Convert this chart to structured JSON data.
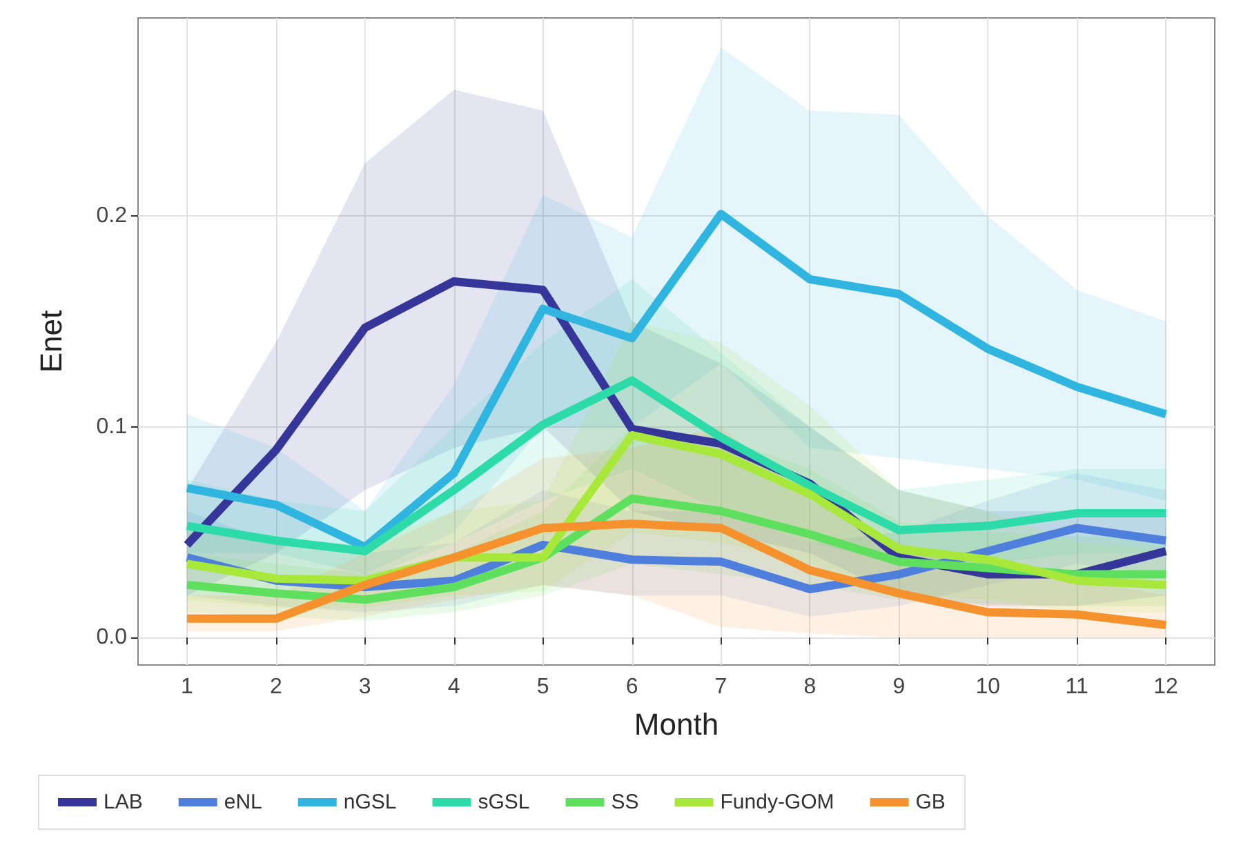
{
  "chart_data": {
    "type": "line",
    "xlabel": "Month",
    "ylabel": "Enet",
    "x": [
      1,
      2,
      3,
      4,
      5,
      6,
      7,
      8,
      9,
      10,
      11,
      12
    ],
    "xlim": [
      0.45,
      12.55
    ],
    "xticks": [
      1,
      2,
      3,
      4,
      5,
      6,
      7,
      8,
      9,
      10,
      11,
      12
    ],
    "ylim": [
      -0.013,
      0.294
    ],
    "yticks": [
      {
        "value": 0,
        "label": "0.0"
      },
      {
        "value": 0.1,
        "label": "0.1"
      },
      {
        "value": 0.2,
        "label": "0.2"
      }
    ],
    "grid": true,
    "legend": "bottom",
    "line_style": "solid",
    "marker": "none",
    "series": [
      {
        "name": "LAB",
        "color": "#35359a",
        "values": [
          0.044,
          0.089,
          0.147,
          0.169,
          0.165,
          0.099,
          0.092,
          0.073,
          0.038,
          0.03,
          0.03,
          0.041
        ],
        "lower": [
          0.02,
          0.04,
          0.07,
          0.09,
          0.1,
          0.06,
          0.05,
          0.04,
          0.02,
          0.015,
          0.015,
          0.02
        ],
        "upper": [
          0.07,
          0.14,
          0.225,
          0.26,
          0.25,
          0.15,
          0.13,
          0.1,
          0.07,
          0.06,
          0.06,
          0.06
        ]
      },
      {
        "name": "eNL",
        "color": "#4f7fdc",
        "values": [
          0.038,
          0.027,
          0.024,
          0.027,
          0.044,
          0.037,
          0.036,
          0.023,
          0.03,
          0.041,
          0.052,
          0.046
        ],
        "lower": [
          0.02,
          0.015,
          0.012,
          0.015,
          0.025,
          0.02,
          0.02,
          0.01,
          0.015,
          0.025,
          0.035,
          0.03
        ],
        "upper": [
          0.06,
          0.045,
          0.04,
          0.045,
          0.07,
          0.06,
          0.06,
          0.045,
          0.05,
          0.065,
          0.078,
          0.07
        ]
      },
      {
        "name": "nGSL",
        "color": "#2fb5e0",
        "values": [
          0.071,
          0.063,
          0.043,
          0.078,
          0.156,
          0.142,
          0.201,
          0.17,
          0.163,
          0.137,
          0.119,
          0.106
        ],
        "lower": [
          0.04,
          0.04,
          0.03,
          0.05,
          0.1,
          0.1,
          0.13,
          0.09,
          0.085,
          0.08,
          0.075,
          0.065
        ],
        "upper": [
          0.106,
          0.09,
          0.06,
          0.12,
          0.21,
          0.19,
          0.28,
          0.25,
          0.248,
          0.2,
          0.165,
          0.15
        ]
      },
      {
        "name": "sGSL",
        "color": "#2ddba8",
        "values": [
          0.053,
          0.046,
          0.041,
          0.07,
          0.101,
          0.122,
          0.095,
          0.072,
          0.051,
          0.053,
          0.059,
          0.059
        ],
        "lower": [
          0.035,
          0.03,
          0.028,
          0.045,
          0.065,
          0.08,
          0.06,
          0.045,
          0.035,
          0.035,
          0.04,
          0.04
        ],
        "upper": [
          0.075,
          0.065,
          0.06,
          0.1,
          0.14,
          0.17,
          0.135,
          0.1,
          0.07,
          0.075,
          0.08,
          0.08
        ]
      },
      {
        "name": "SS",
        "color": "#5ee05e",
        "values": [
          0.025,
          0.021,
          0.018,
          0.024,
          0.038,
          0.066,
          0.06,
          0.049,
          0.036,
          0.033,
          0.03,
          0.03
        ],
        "lower": [
          0.012,
          0.01,
          0.008,
          0.012,
          0.02,
          0.035,
          0.03,
          0.025,
          0.018,
          0.016,
          0.015,
          0.015
        ],
        "upper": [
          0.04,
          0.035,
          0.03,
          0.04,
          0.06,
          0.1,
          0.095,
          0.08,
          0.055,
          0.05,
          0.048,
          0.048
        ]
      },
      {
        "name": "Fundy-GOM",
        "color": "#a8e83a",
        "values": [
          0.035,
          0.028,
          0.027,
          0.038,
          0.038,
          0.096,
          0.087,
          0.068,
          0.042,
          0.037,
          0.027,
          0.025
        ],
        "lower": [
          0.018,
          0.014,
          0.014,
          0.02,
          0.022,
          0.05,
          0.045,
          0.035,
          0.02,
          0.018,
          0.012,
          0.012
        ],
        "upper": [
          0.055,
          0.045,
          0.045,
          0.06,
          0.065,
          0.15,
          0.14,
          0.11,
          0.07,
          0.06,
          0.045,
          0.042
        ]
      },
      {
        "name": "GB",
        "color": "#f5922e",
        "values": [
          0.009,
          0.009,
          0.025,
          0.038,
          0.052,
          0.054,
          0.052,
          0.032,
          0.021,
          0.012,
          0.011,
          0.006
        ],
        "lower": [
          0.003,
          0.003,
          0.01,
          0.018,
          0.025,
          0.02,
          0.005,
          0.002,
          0.0,
          0.0,
          0.0,
          0.0
        ],
        "upper": [
          0.02,
          0.02,
          0.04,
          0.06,
          0.085,
          0.09,
          0.1,
          0.065,
          0.045,
          0.03,
          0.028,
          0.02
        ]
      }
    ]
  }
}
